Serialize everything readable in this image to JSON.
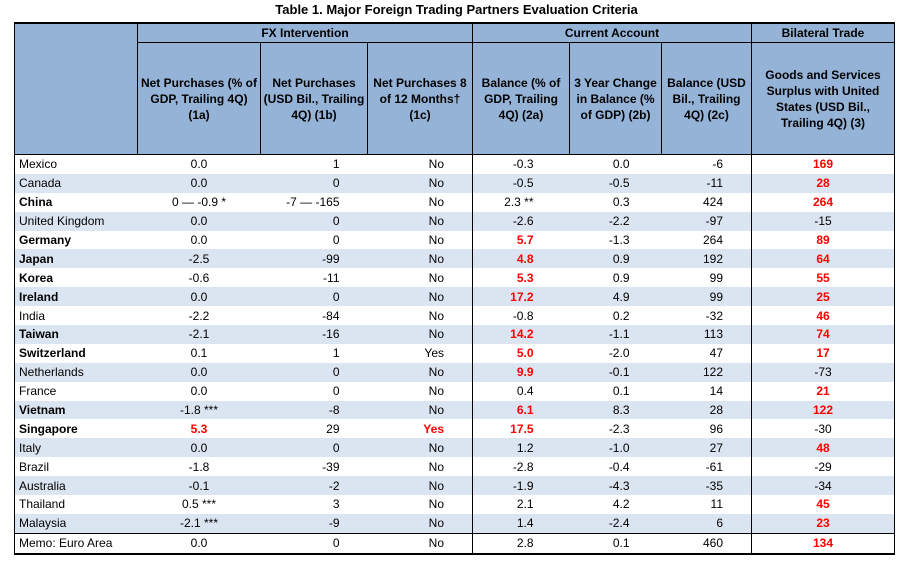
{
  "title": "Table 1. Major Foreign Trading Partners Evaluation Criteria",
  "groups": {
    "fx": "FX Intervention",
    "ca": "Current Account",
    "bt": "Bilateral Trade"
  },
  "headers": {
    "c1a": "Net Purchases (% of GDP, Trailing 4Q) (1a)",
    "c1b": "Net Purchases (USD Bil., Trailing 4Q) (1b)",
    "c1c": "Net Purchases 8 of 12 Months† (1c)",
    "c2a": "Balance (% of GDP, Trailing 4Q) (2a)",
    "c2b": "3 Year Change in Balance (% of GDP) (2b)",
    "c2c": "Balance (USD Bil., Trailing 4Q) (2c)",
    "c3": "Goods and Services Surplus with United States (USD Bil., Trailing 4Q) (3)"
  },
  "colors": {
    "header_bg": "#95b3d7",
    "stripe_bg": "#dbe5f1",
    "flag": "#ff0000"
  },
  "rows": [
    {
      "name": "Mexico",
      "bold": false,
      "c1a": "0.0",
      "c1b": "1",
      "c1c": "No",
      "c2a": "-0.3",
      "c2b": "0.0",
      "c2c": "-6",
      "c3": "169",
      "f1a": false,
      "f1c": false,
      "f2a": false,
      "f3": true
    },
    {
      "name": "Canada",
      "bold": false,
      "c1a": "0.0",
      "c1b": "0",
      "c1c": "No",
      "c2a": "-0.5",
      "c2b": "-0.5",
      "c2c": "-11",
      "c3": "28",
      "f1a": false,
      "f1c": false,
      "f2a": false,
      "f3": true
    },
    {
      "name": "China",
      "bold": true,
      "c1a": "0 — -0.9 *",
      "c1b": "-7 — -165",
      "c1c": "No",
      "c2a": "2.3 **",
      "c2b": "0.3",
      "c2c": "424",
      "c3": "264",
      "f1a": false,
      "f1c": false,
      "f2a": false,
      "f3": true
    },
    {
      "name": "United Kingdom",
      "bold": false,
      "c1a": "0.0",
      "c1b": "0",
      "c1c": "No",
      "c2a": "-2.6",
      "c2b": "-2.2",
      "c2c": "-97",
      "c3": "-15",
      "f1a": false,
      "f1c": false,
      "f2a": false,
      "f3": false
    },
    {
      "name": "Germany",
      "bold": true,
      "c1a": "0.0",
      "c1b": "0",
      "c1c": "No",
      "c2a": "5.7",
      "c2b": "-1.3",
      "c2c": "264",
      "c3": "89",
      "f1a": false,
      "f1c": false,
      "f2a": true,
      "f3": true
    },
    {
      "name": "Japan",
      "bold": true,
      "c1a": "-2.5",
      "c1b": "-99",
      "c1c": "No",
      "c2a": "4.8",
      "c2b": "0.9",
      "c2c": "192",
      "c3": "64",
      "f1a": false,
      "f1c": false,
      "f2a": true,
      "f3": true
    },
    {
      "name": "Korea",
      "bold": true,
      "c1a": "-0.6",
      "c1b": "-11",
      "c1c": "No",
      "c2a": "5.3",
      "c2b": "0.9",
      "c2c": "99",
      "c3": "55",
      "f1a": false,
      "f1c": false,
      "f2a": true,
      "f3": true
    },
    {
      "name": "Ireland",
      "bold": true,
      "c1a": "0.0",
      "c1b": "0",
      "c1c": "No",
      "c2a": "17.2",
      "c2b": "4.9",
      "c2c": "99",
      "c3": "25",
      "f1a": false,
      "f1c": false,
      "f2a": true,
      "f3": true
    },
    {
      "name": "India",
      "bold": false,
      "c1a": "-2.2",
      "c1b": "-84",
      "c1c": "No",
      "c2a": "-0.8",
      "c2b": "0.2",
      "c2c": "-32",
      "c3": "46",
      "f1a": false,
      "f1c": false,
      "f2a": false,
      "f3": true
    },
    {
      "name": "Taiwan",
      "bold": true,
      "c1a": "-2.1",
      "c1b": "-16",
      "c1c": "No",
      "c2a": "14.2",
      "c2b": "-1.1",
      "c2c": "113",
      "c3": "74",
      "f1a": false,
      "f1c": false,
      "f2a": true,
      "f3": true
    },
    {
      "name": "Switzerland",
      "bold": true,
      "c1a": "0.1",
      "c1b": "1",
      "c1c": "Yes",
      "c2a": "5.0",
      "c2b": "-2.0",
      "c2c": "47",
      "c3": "17",
      "f1a": false,
      "f1c": false,
      "f2a": true,
      "f3": true
    },
    {
      "name": "Netherlands",
      "bold": false,
      "c1a": "0.0",
      "c1b": "0",
      "c1c": "No",
      "c2a": "9.9",
      "c2b": "-0.1",
      "c2c": "122",
      "c3": "-73",
      "f1a": false,
      "f1c": false,
      "f2a": true,
      "f3": false
    },
    {
      "name": "France",
      "bold": false,
      "c1a": "0.0",
      "c1b": "0",
      "c1c": "No",
      "c2a": "0.4",
      "c2b": "0.1",
      "c2c": "14",
      "c3": "21",
      "f1a": false,
      "f1c": false,
      "f2a": false,
      "f3": true
    },
    {
      "name": "Vietnam",
      "bold": true,
      "c1a": "-1.8 ***",
      "c1b": "-8",
      "c1c": "No",
      "c2a": "6.1",
      "c2b": "8.3",
      "c2c": "28",
      "c3": "122",
      "f1a": false,
      "f1c": false,
      "f2a": true,
      "f3": true
    },
    {
      "name": "Singapore",
      "bold": true,
      "c1a": "5.3",
      "c1b": "29",
      "c1c": "Yes",
      "c2a": "17.5",
      "c2b": "-2.3",
      "c2c": "96",
      "c3": "-30",
      "f1a": true,
      "f1c": true,
      "f2a": true,
      "f3": false
    },
    {
      "name": "Italy",
      "bold": false,
      "c1a": "0.0",
      "c1b": "0",
      "c1c": "No",
      "c2a": "1.2",
      "c2b": "-1.0",
      "c2c": "27",
      "c3": "48",
      "f1a": false,
      "f1c": false,
      "f2a": false,
      "f3": true
    },
    {
      "name": "Brazil",
      "bold": false,
      "c1a": "-1.8",
      "c1b": "-39",
      "c1c": "No",
      "c2a": "-2.8",
      "c2b": "-0.4",
      "c2c": "-61",
      "c3": "-29",
      "f1a": false,
      "f1c": false,
      "f2a": false,
      "f3": false
    },
    {
      "name": "Australia",
      "bold": false,
      "c1a": "-0.1",
      "c1b": "-2",
      "c1c": "No",
      "c2a": "-1.9",
      "c2b": "-4.3",
      "c2c": "-35",
      "c3": "-34",
      "f1a": false,
      "f1c": false,
      "f2a": false,
      "f3": false
    },
    {
      "name": "Thailand",
      "bold": false,
      "c1a": "0.5 ***",
      "c1b": "3",
      "c1c": "No",
      "c2a": "2.1",
      "c2b": "4.2",
      "c2c": "11",
      "c3": "45",
      "f1a": false,
      "f1c": false,
      "f2a": false,
      "f3": true
    },
    {
      "name": "Malaysia",
      "bold": false,
      "c1a": "-2.1 ***",
      "c1b": "-9",
      "c1c": "No",
      "c2a": "1.4",
      "c2b": "-2.4",
      "c2c": "6",
      "c3": "23",
      "f1a": false,
      "f1c": false,
      "f2a": false,
      "f3": true
    },
    {
      "name": "Memo: Euro Area",
      "bold": false,
      "c1a": "0.0",
      "c1b": "0",
      "c1c": "No",
      "c2a": "2.8",
      "c2b": "0.1",
      "c2c": "460",
      "c3": "134",
      "f1a": false,
      "f1c": false,
      "f2a": false,
      "f3": true
    }
  ]
}
